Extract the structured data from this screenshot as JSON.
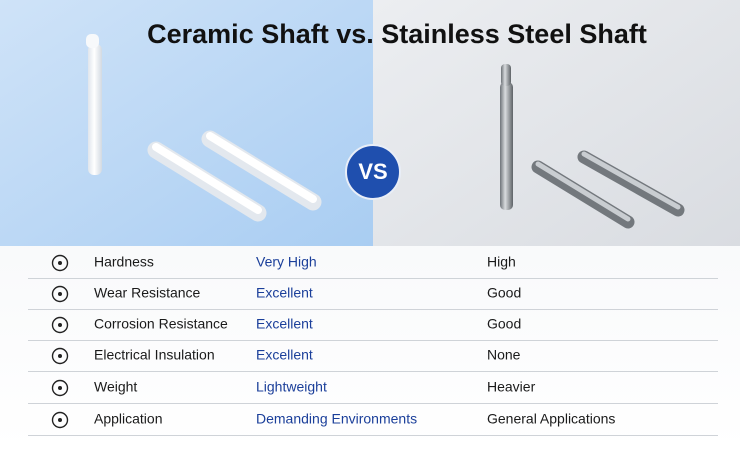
{
  "header": {
    "title": "Ceramic Shaft vs. Stainless Steel Shaft",
    "badge": "VS"
  },
  "table": {
    "rows": [
      [
        "Hardness",
        "Very High",
        "High"
      ],
      [
        "Wear Resistance",
        "Excellent",
        "Good"
      ],
      [
        "Corrosion Resistance",
        "Excellent",
        "Good"
      ],
      [
        "Electrical Insulation",
        "Excellent",
        "None"
      ],
      [
        "Weight",
        "Lightweight",
        "Heavier"
      ],
      [
        "Application",
        "Demanding Environments",
        "General Applications"
      ]
    ]
  }
}
